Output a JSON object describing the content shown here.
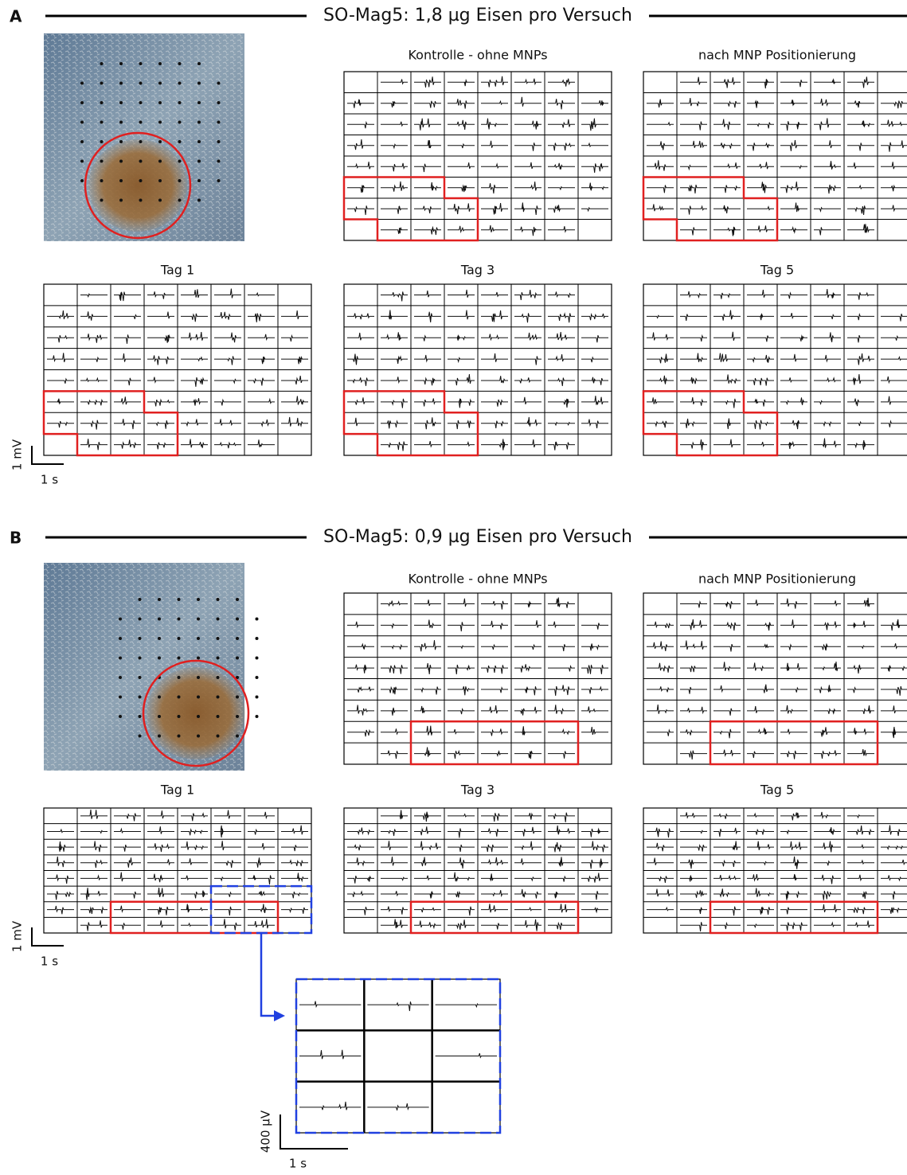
{
  "panels": [
    {
      "label": "A",
      "title": "SO-Mag5: 1,8 µg Eisen pro Versuch",
      "grids": [
        {
          "title": "Kontrolle - ohne MNPs"
        },
        {
          "title": "nach MNP Positionierung"
        },
        {
          "title": "Tag 1"
        },
        {
          "title": "Tag 3"
        },
        {
          "title": "Tag 5"
        }
      ],
      "scale_bar": {
        "y": "1 mV",
        "x": "1 s"
      }
    },
    {
      "label": "B",
      "title": "SO-Mag5: 0,9 µg Eisen pro Versuch",
      "grids": [
        {
          "title": "Kontrolle - ohne MNPs"
        },
        {
          "title": "nach MNP Positionierung"
        },
        {
          "title": "Tag 1"
        },
        {
          "title": "Tag 3"
        },
        {
          "title": "Tag 5"
        }
      ],
      "scale_bar": {
        "y": "1 mV",
        "x": "1 s"
      }
    }
  ],
  "inset": {
    "scale_bar": {
      "y": "400 µV",
      "x": "1 s"
    }
  }
}
